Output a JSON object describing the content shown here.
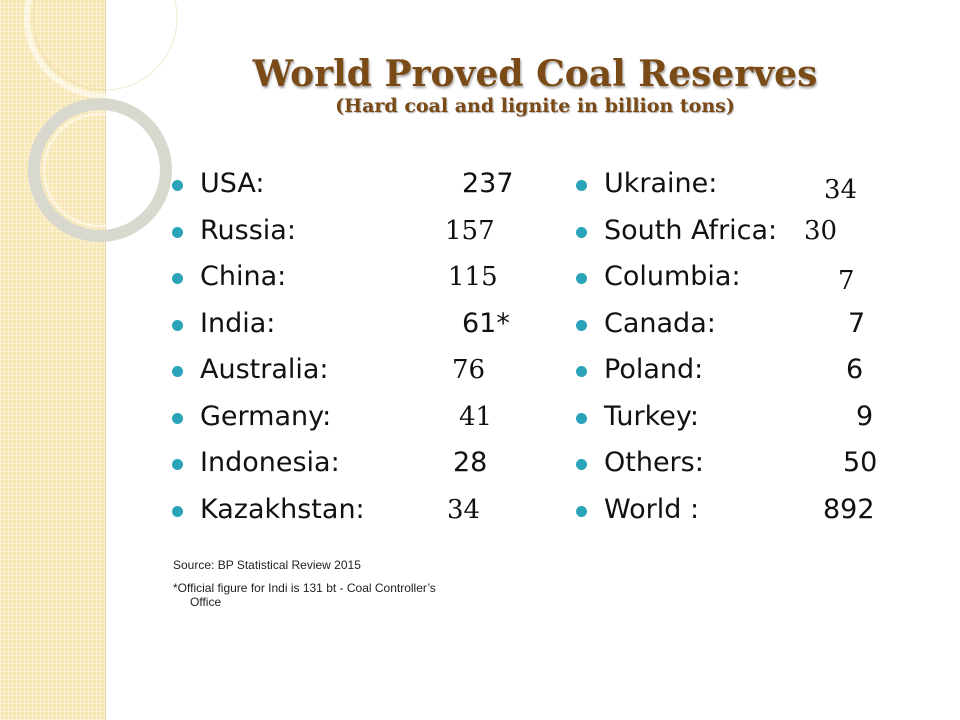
{
  "title": "World Proved Coal Reserves",
  "subtitle": "(Hard coal and lignite in billion tons)",
  "left_list": [
    {
      "name": "USA:",
      "value": "237"
    },
    {
      "name": "Russia:",
      "value": "157"
    },
    {
      "name": "China:",
      "value": "115"
    },
    {
      "name": "India:",
      "value": "61*"
    },
    {
      "name": "Australia:",
      "value": "76"
    },
    {
      "name": "Germany:",
      "value": "41"
    },
    {
      "name": "Indonesia:",
      "value": "28"
    },
    {
      "name": "Kazakhstan:",
      "value": "34"
    }
  ],
  "right_list": [
    {
      "name": "Ukraine:",
      "value": "34"
    },
    {
      "name": "South Africa:",
      "value": "30"
    },
    {
      "name": "Columbia:",
      "value": "7"
    },
    {
      "name": "Canada:",
      "value": "7"
    },
    {
      "name": "Poland:",
      "value": "6"
    },
    {
      "name": "Turkey:",
      "value": "9"
    },
    {
      "name": "Others:",
      "value": "50"
    },
    {
      "name": "World :",
      "value": "892"
    }
  ],
  "source": "Source: BP Statistical Review 2015",
  "note_line1": "*Official figure for Indi is 131 bt - Coal Controller’s",
  "note_line2": "Office",
  "colors": {
    "title": "#7a4a17",
    "bullet": "#2aa3b9",
    "left_band": "#f7e7b4"
  }
}
